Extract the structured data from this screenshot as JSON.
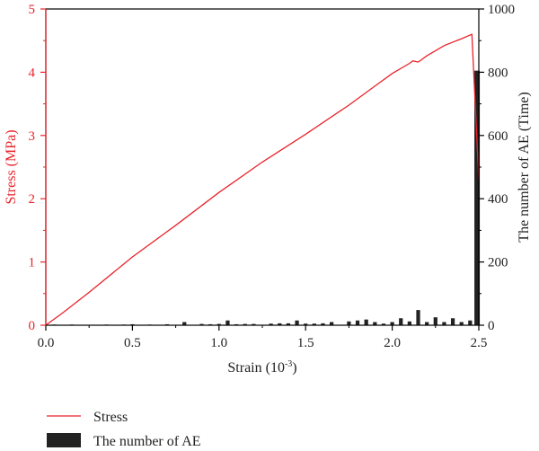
{
  "chart_data": {
    "type": "line+bar",
    "x": {
      "label_prefix": "Strain (10",
      "label_exp": "-3",
      "label_suffix": ")",
      "range": [
        0,
        2.5
      ],
      "ticks": [
        "0.0",
        "0.5",
        "1.0",
        "1.5",
        "2.0",
        "2.5"
      ]
    },
    "y_left": {
      "label": "Stress (MPa)",
      "range": [
        0,
        5
      ],
      "ticks": [
        "0",
        "1",
        "2",
        "3",
        "4",
        "5"
      ],
      "color": "#e8232b"
    },
    "y_right": {
      "label": "The number of AE (Time)",
      "range": [
        0,
        1000
      ],
      "ticks": [
        "0",
        "200",
        "400",
        "600",
        "800",
        "1000"
      ]
    },
    "series": [
      {
        "name": "Stress",
        "kind": "line",
        "axis": "left",
        "color": "#e8232b",
        "points": [
          [
            0,
            0
          ],
          [
            0.1,
            0.2
          ],
          [
            0.25,
            0.52
          ],
          [
            0.5,
            1.08
          ],
          [
            0.75,
            1.58
          ],
          [
            1.0,
            2.1
          ],
          [
            1.25,
            2.58
          ],
          [
            1.5,
            3.02
          ],
          [
            1.75,
            3.48
          ],
          [
            1.9,
            3.78
          ],
          [
            2.0,
            3.98
          ],
          [
            2.1,
            4.14
          ],
          [
            2.12,
            4.18
          ],
          [
            2.15,
            4.16
          ],
          [
            2.2,
            4.26
          ],
          [
            2.3,
            4.42
          ],
          [
            2.4,
            4.53
          ],
          [
            2.46,
            4.6
          ],
          [
            2.5,
            2.3
          ]
        ]
      },
      {
        "name": "The number of AE",
        "kind": "bar",
        "axis": "right",
        "color": "#222222",
        "bar_width": 0.022,
        "points": [
          [
            0.05,
            2
          ],
          [
            0.15,
            2
          ],
          [
            0.25,
            1
          ],
          [
            0.35,
            2
          ],
          [
            0.45,
            2
          ],
          [
            0.5,
            3
          ],
          [
            0.6,
            2
          ],
          [
            0.7,
            3
          ],
          [
            0.8,
            10
          ],
          [
            0.9,
            4
          ],
          [
            0.95,
            3
          ],
          [
            1.0,
            4
          ],
          [
            1.05,
            15
          ],
          [
            1.1,
            3
          ],
          [
            1.15,
            4
          ],
          [
            1.2,
            4
          ],
          [
            1.3,
            5
          ],
          [
            1.35,
            6
          ],
          [
            1.4,
            6
          ],
          [
            1.45,
            15
          ],
          [
            1.5,
            5
          ],
          [
            1.55,
            5
          ],
          [
            1.6,
            6
          ],
          [
            1.65,
            10
          ],
          [
            1.75,
            12
          ],
          [
            1.8,
            15
          ],
          [
            1.85,
            18
          ],
          [
            1.9,
            10
          ],
          [
            1.95,
            5
          ],
          [
            2.0,
            10
          ],
          [
            2.05,
            22
          ],
          [
            2.1,
            12
          ],
          [
            2.15,
            48
          ],
          [
            2.2,
            10
          ],
          [
            2.25,
            25
          ],
          [
            2.3,
            10
          ],
          [
            2.35,
            22
          ],
          [
            2.4,
            10
          ],
          [
            2.45,
            15
          ],
          [
            2.49,
            805
          ]
        ]
      }
    ],
    "legend": {
      "placement": "bottom-left",
      "entries": [
        "Stress",
        "The number of AE"
      ]
    },
    "grid": false
  }
}
